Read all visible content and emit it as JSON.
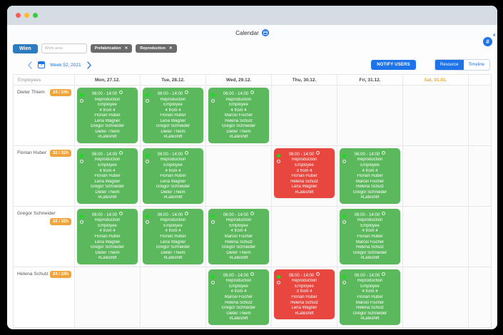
{
  "colors": {
    "accent_blue": "#1e73e8",
    "location_blue": "#2e7cc0",
    "green_shift": "#5cb85c",
    "red_shift": "#e8473f",
    "badge_orange": "#f0a43c",
    "saturday_orange": "#f5a623",
    "titlebar_gray": "#d6dce3",
    "tag_gray": "#6b6b6b"
  },
  "icons": {
    "hash": "#",
    "close": "✕",
    "calendar_day": "1"
  },
  "header": {
    "title": "Calendar",
    "notification_count": "4"
  },
  "toolbar": {
    "location": "Wien",
    "work_area_placeholder": "Work area",
    "filters": [
      {
        "label": "Prefabrication"
      },
      {
        "label": "Reproduction"
      }
    ],
    "week_label": "Week 52, 2021",
    "notify_button": "NOTIFY USERS",
    "view_toggle": {
      "active": "Resource",
      "inactive": "Timeline"
    }
  },
  "schedule": {
    "employees_header": "Employees",
    "days": [
      "Mon, 27.12.",
      "Tue, 28.12.",
      "Wed, 29.12.",
      "Thu, 30.12.",
      "Fri, 31.12.",
      "Sat, 01.01."
    ],
    "card_templates": {
      "a": {
        "status": "green",
        "time": "06:00 - 14:00",
        "lines": [
          "Reproduction",
          "Employee",
          "4 from 4",
          "Florian Huber",
          "Lena Wagner",
          "Gregor Schneider",
          "Dieter Thiem"
        ],
        "tag": "#Lateshift"
      },
      "b": {
        "status": "green",
        "time": "06:00 - 14:00",
        "lines": [
          "Reproduction",
          "Employee",
          "4 from 4",
          "Marcel Fischer",
          "Helena Schulz",
          "Gregor Schneider",
          "Dieter Thiem"
        ],
        "tag": "#Lateshift"
      },
      "r": {
        "status": "red",
        "time": "06:00 - 14:00",
        "lines": [
          "Reproduction",
          "Employee",
          "3 from 4",
          "Florian Huber",
          "Helena Schulz",
          "Lena Wagner"
        ],
        "tag": "#Lateshift"
      },
      "c": {
        "status": "green",
        "time": "06:00 - 14:00",
        "lines": [
          "Reproduction",
          "Employee",
          "4 from 4",
          "Florian Huber",
          "Marcel Fischer",
          "Helena Schulz",
          "Gregor Schneider"
        ],
        "tag": "#Lateshift"
      }
    },
    "rows": [
      {
        "name": "Dieter Thiem",
        "hours": "24 / 24h",
        "cells": [
          "a",
          "a",
          "b",
          null,
          null,
          null
        ]
      },
      {
        "name": "Florian Huber",
        "hours": "32 / 32h",
        "cells": [
          "a",
          "a",
          null,
          "r",
          "c",
          null
        ]
      },
      {
        "name": "Gregor Schneider",
        "hours": "32 / 32h",
        "cells": [
          "a",
          "a",
          "b",
          null,
          "c",
          null
        ]
      },
      {
        "name": "Helena Schulz",
        "hours": "24 / 24h",
        "cells": [
          null,
          null,
          "b",
          "r",
          "c",
          null
        ]
      }
    ]
  }
}
